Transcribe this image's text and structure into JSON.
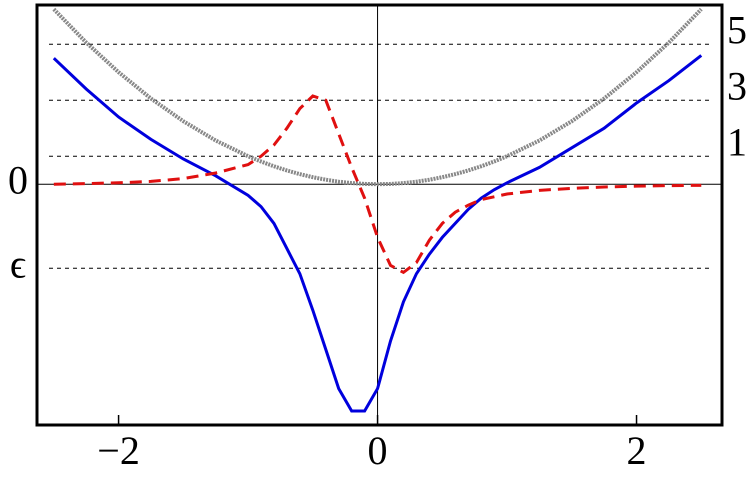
{
  "chart_data": {
    "type": "line",
    "x": [
      -2.5,
      -2.25,
      -2,
      -1.75,
      -1.5,
      -1.25,
      -1,
      -0.9,
      -0.8,
      -0.7,
      -0.6,
      -0.5,
      -0.4,
      -0.3,
      -0.2,
      -0.1,
      0,
      0.1,
      0.2,
      0.3,
      0.4,
      0.5,
      0.6,
      0.7,
      0.8,
      0.9,
      1,
      1.25,
      1.5,
      1.75,
      2,
      2.25,
      2.5
    ],
    "series": [
      {
        "color": "#888888",
        "style": "dotted",
        "values": [
          6.25,
          5.06,
          4,
          3.06,
          2.25,
          1.56,
          1,
          0.81,
          0.64,
          0.49,
          0.36,
          0.25,
          0.16,
          0.09,
          0.04,
          0.01,
          0,
          0.01,
          0.04,
          0.09,
          0.16,
          0.25,
          0.36,
          0.49,
          0.64,
          0.81,
          1,
          1.56,
          2.25,
          3.06,
          4,
          5.06,
          6.25
        ]
      },
      {
        "color": "#0000dd",
        "style": "solid",
        "values": [
          4.5,
          3.4,
          2.4,
          1.6,
          0.9,
          0.3,
          -0.4,
          -0.8,
          -1.4,
          -2.3,
          -3.2,
          -4.5,
          -5.9,
          -7.3,
          -8.1,
          -8.1,
          -7.3,
          -5.6,
          -4.2,
          -3.2,
          -2.5,
          -1.9,
          -1.4,
          -0.9,
          -0.5,
          -0.2,
          0.05,
          0.6,
          1.3,
          2.0,
          2.9,
          3.7,
          4.6
        ]
      },
      {
        "color": "#e01010",
        "style": "dashed",
        "values": [
          0,
          0.02,
          0.05,
          0.1,
          0.2,
          0.4,
          0.7,
          1.0,
          1.4,
          2.0,
          2.7,
          3.15,
          3.0,
          1.8,
          0.6,
          -0.5,
          -1.9,
          -2.9,
          -3.15,
          -2.8,
          -2.0,
          -1.4,
          -1.0,
          -0.75,
          -0.55,
          -0.45,
          -0.35,
          -0.22,
          -0.15,
          -0.1,
          -0.07,
          -0.05,
          -0.04
        ]
      }
    ],
    "xlim": [
      -2.63,
      2.66
    ],
    "xticks": [
      {
        "value": -2,
        "label": "−2"
      },
      0,
      2
    ],
    "ylim": [
      -8.6,
      6.4
    ],
    "yticks": [
      0,
      {
        "value": -3,
        "label": "ϵ"
      }
    ],
    "y2lim": [
      -8.6,
      6.4
    ],
    "y2ticks": [
      1,
      3,
      5
    ],
    "grid": true
  }
}
